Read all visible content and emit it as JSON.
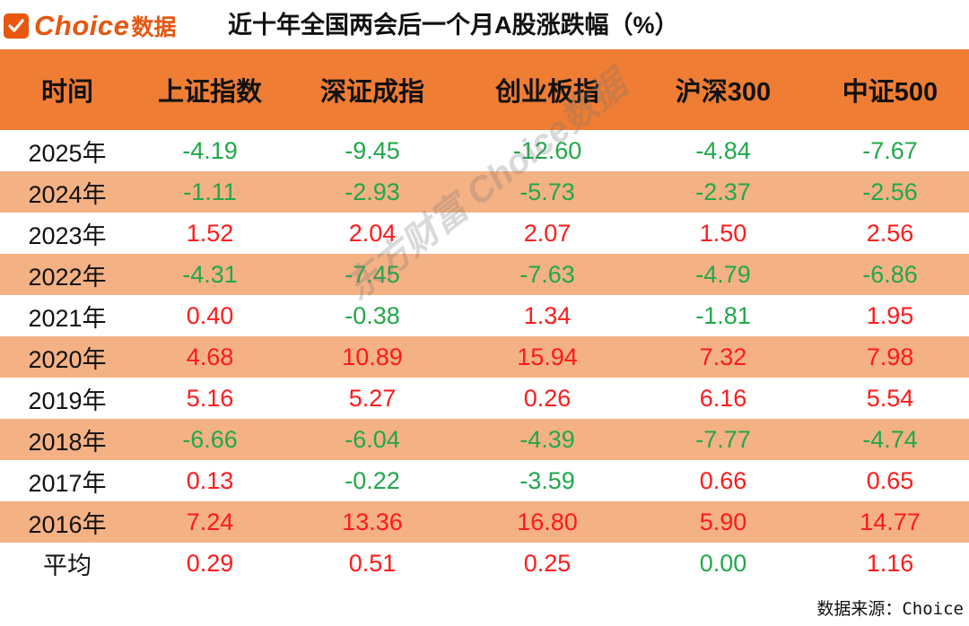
{
  "logo": {
    "brand": "Choice",
    "suffix": "数据",
    "icon": "check-icon"
  },
  "title": "近十年全国两会后一个月A股涨跌幅（%）",
  "watermark": "东方财富 Choice数据",
  "source": "数据来源：Choice",
  "colors": {
    "header_bg": "#ef7d34",
    "stripe_bg": "#f4b184",
    "positive": "#ff1a1a",
    "negative": "#21a84a",
    "brand": "#e8560f"
  },
  "chart_data": {
    "type": "table",
    "title": "近十年全国两会后一个月A股涨跌幅（%）",
    "columns": [
      "时间",
      "上证指数",
      "深证成指",
      "创业板指",
      "沪深300",
      "中证500"
    ],
    "rows": [
      {
        "label": "2025年",
        "values": [
          "-4.19",
          "-9.45",
          "-12.60",
          "-4.84",
          "-7.67"
        ]
      },
      {
        "label": "2024年",
        "values": [
          "-1.11",
          "-2.93",
          "-5.73",
          "-2.37",
          "-2.56"
        ]
      },
      {
        "label": "2023年",
        "values": [
          "1.52",
          "2.04",
          "2.07",
          "1.50",
          "2.56"
        ]
      },
      {
        "label": "2022年",
        "values": [
          "-4.31",
          "-7.45",
          "-7.63",
          "-4.79",
          "-6.86"
        ]
      },
      {
        "label": "2021年",
        "values": [
          "0.40",
          "-0.38",
          "1.34",
          "-1.81",
          "1.95"
        ]
      },
      {
        "label": "2020年",
        "values": [
          "4.68",
          "10.89",
          "15.94",
          "7.32",
          "7.98"
        ]
      },
      {
        "label": "2019年",
        "values": [
          "5.16",
          "5.27",
          "0.26",
          "6.16",
          "5.54"
        ]
      },
      {
        "label": "2018年",
        "values": [
          "-6.66",
          "-6.04",
          "-4.39",
          "-7.77",
          "-4.74"
        ]
      },
      {
        "label": "2017年",
        "values": [
          "0.13",
          "-0.22",
          "-3.59",
          "0.66",
          "0.65"
        ]
      },
      {
        "label": "2016年",
        "values": [
          "7.24",
          "13.36",
          "16.80",
          "5.90",
          "14.77"
        ]
      },
      {
        "label": "平均",
        "values": [
          "0.29",
          "0.51",
          "0.25",
          "0.00",
          "1.16"
        ]
      }
    ]
  }
}
